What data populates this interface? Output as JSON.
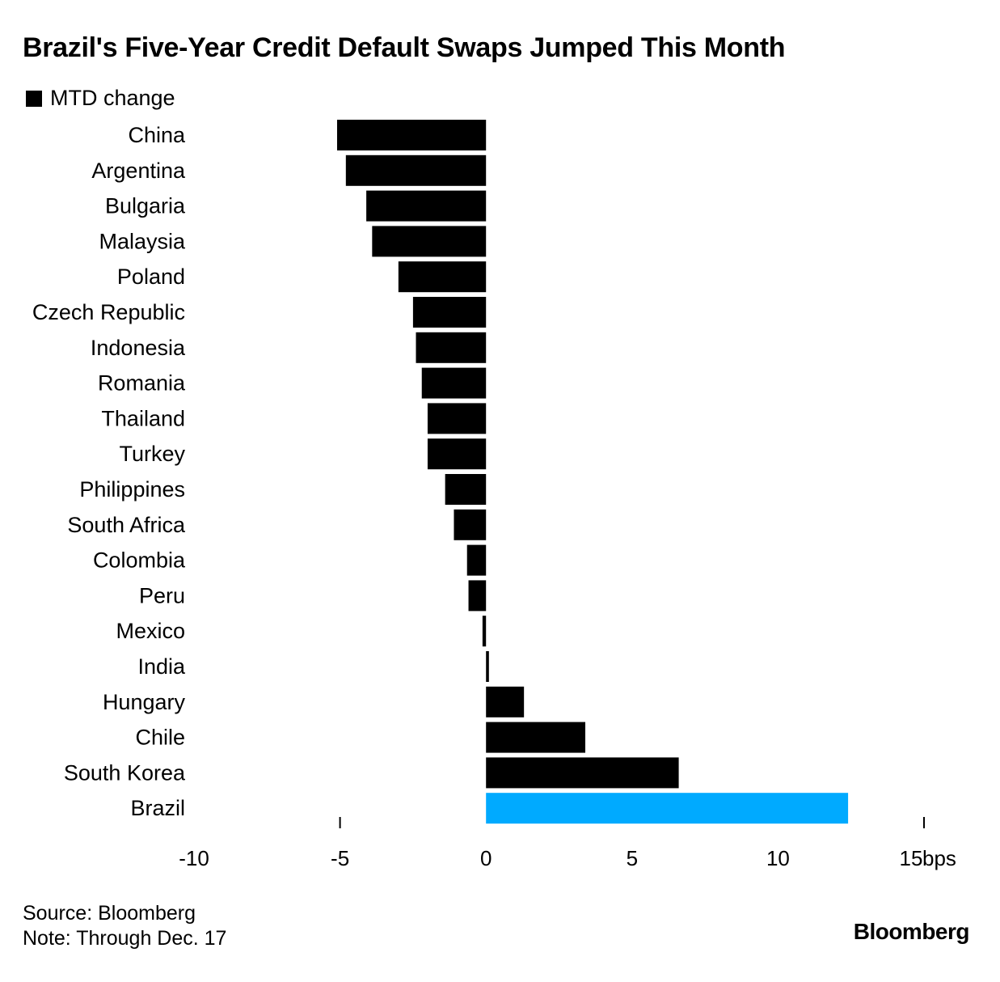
{
  "title": "Brazil's Five-Year Credit Default Swaps Jumped This Month",
  "legend": {
    "label": "MTD change"
  },
  "source": "Source: Bloomberg",
  "note": "Note: Through Dec. 17",
  "brand": "Bloomberg",
  "colors": {
    "bar": "#000000",
    "highlight": "#00aaff",
    "background": "#ffffff"
  },
  "chart_data": {
    "type": "bar",
    "orientation": "horizontal",
    "title": "Brazil's Five-Year Credit Default Swaps Jumped This Month",
    "xlabel": "bps",
    "ylabel": "",
    "xlim": [
      -10,
      15
    ],
    "ticks": [
      {
        "value": -10,
        "label": "-10"
      },
      {
        "value": -5,
        "label": "-5"
      },
      {
        "value": 0,
        "label": "0"
      },
      {
        "value": 5,
        "label": "5"
      },
      {
        "value": 10,
        "label": "10"
      },
      {
        "value": 15,
        "label": "15"
      }
    ],
    "unit_label": "bps",
    "grid": false,
    "legend_position": "top-left",
    "categories": [
      "China",
      "Argentina",
      "Bulgaria",
      "Malaysia",
      "Poland",
      "Czech Republic",
      "Indonesia",
      "Romania",
      "Thailand",
      "Turkey",
      "Philippines",
      "South Africa",
      "Colombia",
      "Peru",
      "Mexico",
      "India",
      "Hungary",
      "Chile",
      "South Korea",
      "Brazil"
    ],
    "series": [
      {
        "name": "MTD change",
        "values": [
          -5.1,
          -4.8,
          -4.1,
          -3.9,
          -3.0,
          -2.5,
          -2.4,
          -2.2,
          -2.0,
          -2.0,
          -1.4,
          -1.1,
          -0.65,
          -0.6,
          -0.12,
          0.1,
          1.3,
          3.4,
          6.6,
          12.4
        ],
        "highlight": [
          "Brazil"
        ]
      }
    ]
  }
}
